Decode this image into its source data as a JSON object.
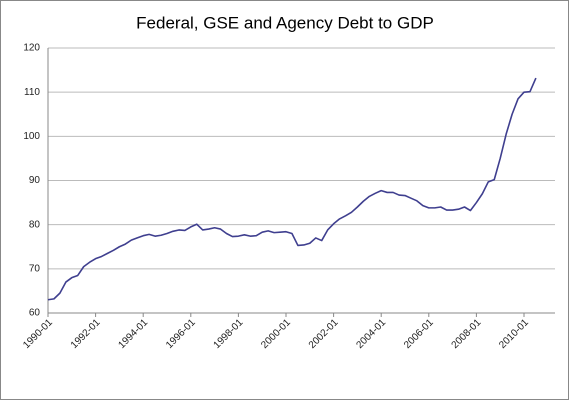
{
  "chart_data": {
    "type": "line",
    "title": "Federal, GSE and Agency Debt to GDP",
    "categories": [
      "1990-01",
      null,
      null,
      null,
      null,
      null,
      null,
      null,
      "1992-01",
      null,
      null,
      null,
      null,
      null,
      null,
      null,
      "1994-01",
      null,
      null,
      null,
      null,
      null,
      null,
      null,
      "1996-01",
      null,
      null,
      null,
      null,
      null,
      null,
      null,
      "1998-01",
      null,
      null,
      null,
      null,
      null,
      null,
      null,
      "2000-01",
      null,
      null,
      null,
      null,
      null,
      null,
      null,
      "2002-01",
      null,
      null,
      null,
      null,
      null,
      null,
      null,
      "2004-01",
      null,
      null,
      null,
      null,
      null,
      null,
      null,
      "2006-01",
      null,
      null,
      null,
      null,
      null,
      null,
      null,
      "2008-01",
      null,
      null,
      null,
      null,
      null,
      null,
      null,
      "2010-01",
      null,
      null
    ],
    "values": [
      63,
      63.2,
      64.5,
      67,
      68,
      68.5,
      70.5,
      71.5,
      72.3,
      72.8,
      73.5,
      74.2,
      75,
      75.6,
      76.5,
      77,
      77.5,
      77.8,
      77.4,
      77.6,
      78,
      78.5,
      78.8,
      78.7,
      79.5,
      80.1,
      78.8,
      79,
      79.3,
      79,
      78,
      77.3,
      77.4,
      77.7,
      77.4,
      77.5,
      78.3,
      78.6,
      78.2,
      78.3,
      78.4,
      78,
      75.3,
      75.4,
      75.8,
      77,
      76.4,
      78.8,
      80.2,
      81.3,
      82,
      82.8,
      84,
      85.3,
      86.4,
      87.1,
      87.7,
      87.3,
      87.3,
      86.7,
      86.6,
      86,
      85.4,
      84.3,
      83.8,
      83.8,
      84,
      83.3,
      83.3,
      83.5,
      84,
      83.2,
      85,
      87,
      89.7,
      90.2,
      95,
      100.5,
      105,
      108.5,
      110,
      110.1,
      113.2
    ],
    "color": "#3f3f8f",
    "ylim": [
      60,
      120
    ],
    "yticks": [
      60,
      70,
      80,
      90,
      100,
      110,
      120
    ],
    "grid": true
  }
}
